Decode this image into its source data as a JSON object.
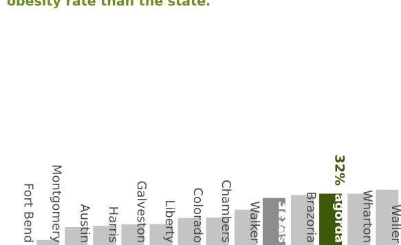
{
  "header_text": "obesity rate than the state.",
  "chart_data": {
    "type": "bar",
    "orientation": "vertical",
    "categories": [
      "Fort Bend",
      "Montgomery",
      "Austin",
      "Harris",
      "Galveston",
      "Liberty",
      "Colorado",
      "Chambers",
      "Walker",
      "Texas",
      "Brazoria",
      "Matagorda",
      "Wharton",
      "Waller"
    ],
    "values": [
      20.1,
      21.3,
      24.3,
      24.6,
      24.9,
      25.0,
      26.4,
      26.5,
      28.3,
      31.0,
      31.7,
      32.0,
      32.0,
      32.9
    ],
    "value_labels": [
      {
        "category": "Texas",
        "text": "31%"
      },
      {
        "category": "Matagorda",
        "text": "32%"
      }
    ],
    "highlight": {
      "Texas": "#8c8c8c",
      "Matagorda": "#3d5a0b"
    },
    "colors": {
      "default_bar": "#c4c4c4",
      "default_label": "#4a4a4a",
      "highlight_label": "#ffffff",
      "header": "#6b8e23"
    },
    "ylim": [
      0,
      33
    ]
  }
}
